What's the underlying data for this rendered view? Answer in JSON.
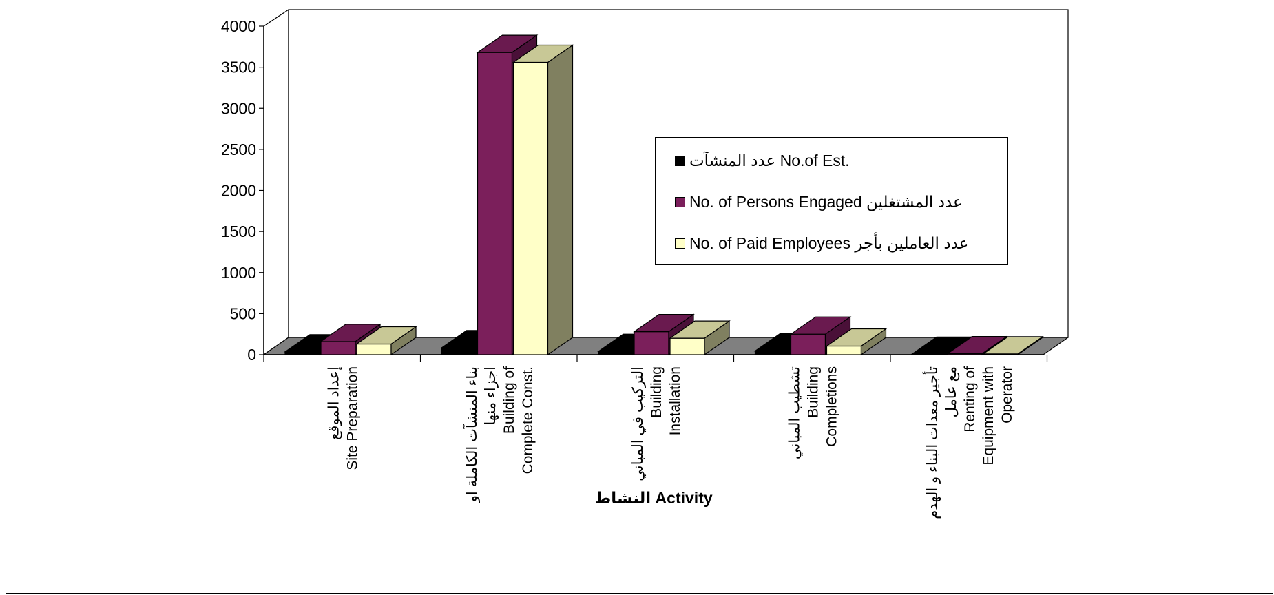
{
  "chart_data": {
    "type": "bar",
    "xlabel": "النشاط Activity",
    "ylabel": "",
    "ylim": [
      0,
      4000
    ],
    "yticks": [
      0,
      500,
      1000,
      1500,
      2000,
      2500,
      3000,
      3500,
      4000
    ],
    "categories": [
      [
        "إعداد الموقع",
        "Site Preparation"
      ],
      [
        "بناء المنشآت الكاملة او",
        "اجزاء منها",
        "Building of",
        "Complete Const."
      ],
      [
        "التركيب في المباني",
        "Building",
        "Installation"
      ],
      [
        "تشطيب المباني",
        "Building",
        "Completions"
      ],
      [
        "تأجير معدات البناء و الهدم",
        "مع عامل",
        "Renting of",
        "Equipment with",
        "Operator"
      ]
    ],
    "series": [
      {
        "name": "عدد المنشآت No.of Est.",
        "color": "#000000",
        "values": [
          35,
          85,
          40,
          45,
          5
        ]
      },
      {
        "name": "No. of Persons Engaged عدد المشتغلين",
        "color": "#7B1F5B",
        "values": [
          160,
          3680,
          280,
          250,
          12
        ]
      },
      {
        "name": "No. of Paid Employees عدد العاملين بأجر",
        "color": "#FFFFC8",
        "values": [
          130,
          3560,
          200,
          105,
          10
        ]
      }
    ],
    "legend_position": "right-center",
    "grid": false
  }
}
